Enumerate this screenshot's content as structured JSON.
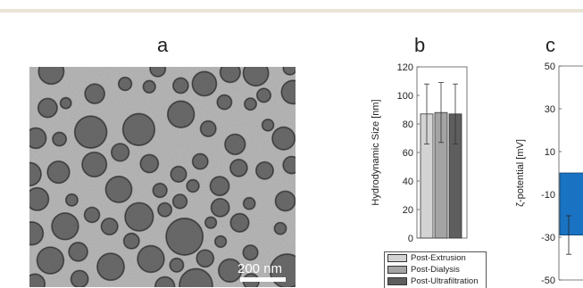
{
  "panels": {
    "a_label": "a",
    "b_label": "b",
    "c_label": "c"
  },
  "micrograph": {
    "scale_bar_label": "200 nm"
  },
  "colors": {
    "post_extrusion": "#d3d3d3",
    "post_dialysis": "#a4a4a4",
    "post_ultrafiltration": "#5e5e5e",
    "zeta_bar": "#1a73c2",
    "top_rule": "#e8e4d6"
  },
  "chart_data": [
    {
      "type": "bar",
      "title": "b",
      "ylabel": "Hydrodynamic Size [nm]",
      "xlabel": "",
      "ylim": [
        0,
        120
      ],
      "yticks": [
        0,
        20,
        40,
        60,
        80,
        100,
        120
      ],
      "categories": [
        "Post-Extrusion",
        "Post-Dialysis",
        "Post-Ultrafiltration"
      ],
      "values": [
        87,
        88,
        87
      ],
      "errors": [
        21,
        21,
        21
      ],
      "legend": [
        "Post-Extrusion",
        "Post-Dialysis",
        "Post-Ultrafiltration"
      ],
      "legend_position": "bottom"
    },
    {
      "type": "bar",
      "title": "c",
      "ylabel": "ζ-potential [mV]",
      "xlabel": "",
      "ylim": [
        -50,
        50
      ],
      "yticks": [
        -50,
        -30,
        -10,
        10,
        30,
        50
      ],
      "values": [
        -29
      ],
      "errors": [
        9
      ]
    }
  ]
}
